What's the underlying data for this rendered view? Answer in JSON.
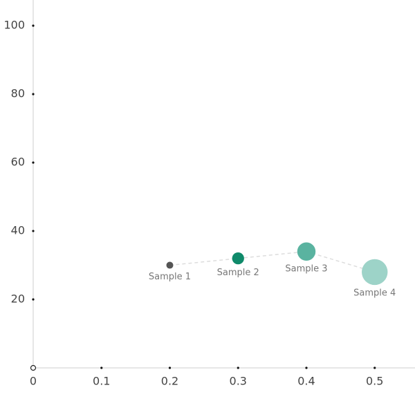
{
  "chart_data": {
    "type": "bubble",
    "x": [
      0.2,
      0.3,
      0.4,
      0.5
    ],
    "values": [
      30,
      32,
      34,
      28
    ],
    "sizes": [
      1,
      3,
      7,
      14
    ],
    "labels": [
      "Sample 1",
      "Sample 2",
      "Sample 3",
      "Sample 4"
    ],
    "colors": [
      "#555555",
      "#0f8a6a",
      "#5ab3a0",
      "#9dd3c8"
    ],
    "connect": true,
    "xlim": [
      0,
      0.559
    ],
    "ylim": [
      0,
      107.5
    ],
    "xticks": [
      0,
      0.1,
      0.2,
      0.3,
      0.4,
      0.5
    ],
    "yticks": [
      20,
      40,
      60,
      80,
      100
    ]
  }
}
